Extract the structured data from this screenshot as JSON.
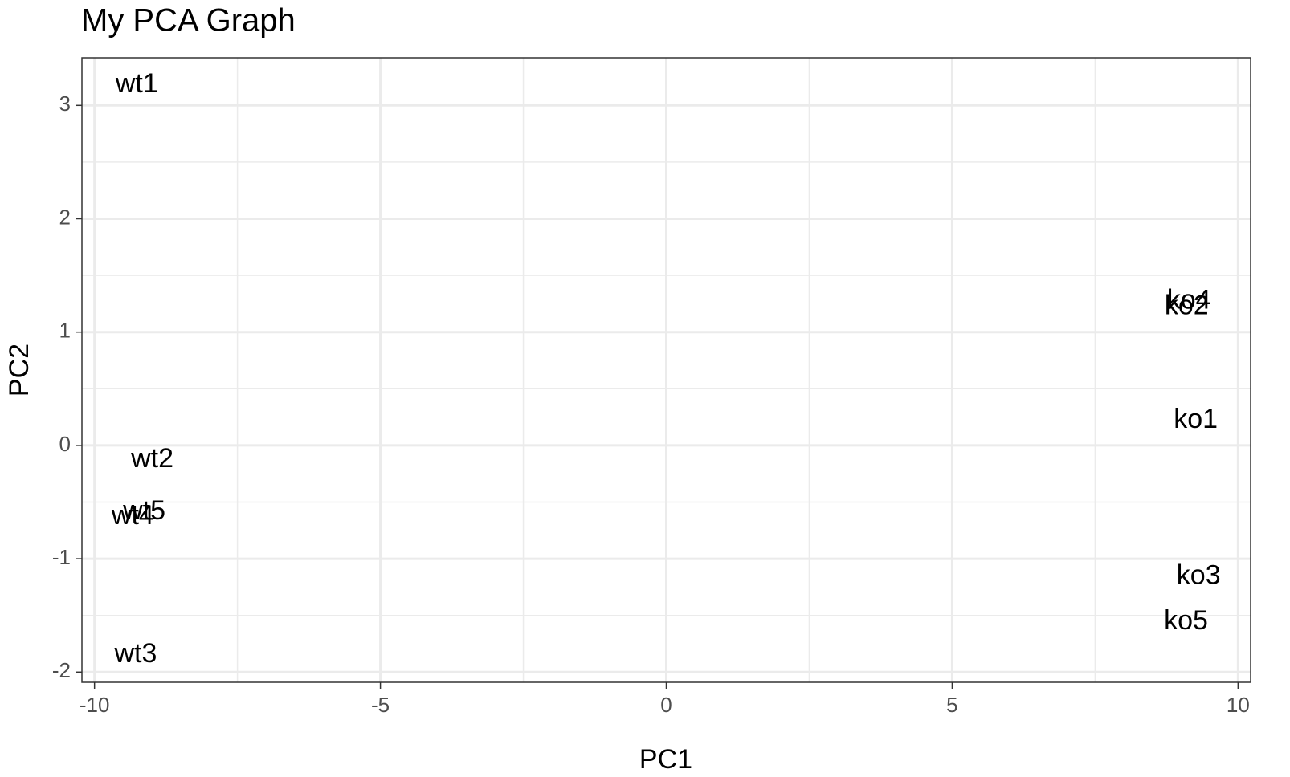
{
  "chart_data": {
    "type": "scatter",
    "title": "My PCA Graph",
    "x_label": "PC1",
    "y_label": "PC2",
    "labels": [
      "wt1",
      "wt2",
      "wt3",
      "wt4",
      "wt5",
      "ko1",
      "ko2",
      "ko3",
      "ko4",
      "ko5"
    ],
    "x": [
      -9.26,
      -8.99,
      -9.28,
      -9.33,
      -9.13,
      9.26,
      9.1,
      9.31,
      9.14,
      9.09
    ],
    "values": [
      3.18,
      -0.13,
      -1.85,
      -0.63,
      -0.59,
      0.22,
      1.22,
      -1.16,
      1.27,
      -1.56
    ],
    "color": "#000000",
    "xlim": [
      -10.22,
      10.22
    ],
    "ylim": [
      -2.09,
      3.42
    ],
    "xticks": [
      -10,
      -5,
      0,
      5,
      10
    ],
    "yticks": [
      -2,
      -1,
      0,
      1,
      2,
      3
    ],
    "x_minor_grid": [
      -7.5,
      -2.5,
      2.5,
      7.5
    ],
    "y_minor_grid": [
      -1.5,
      -0.5,
      0.5,
      1.5,
      2.5
    ],
    "grid": true
  }
}
